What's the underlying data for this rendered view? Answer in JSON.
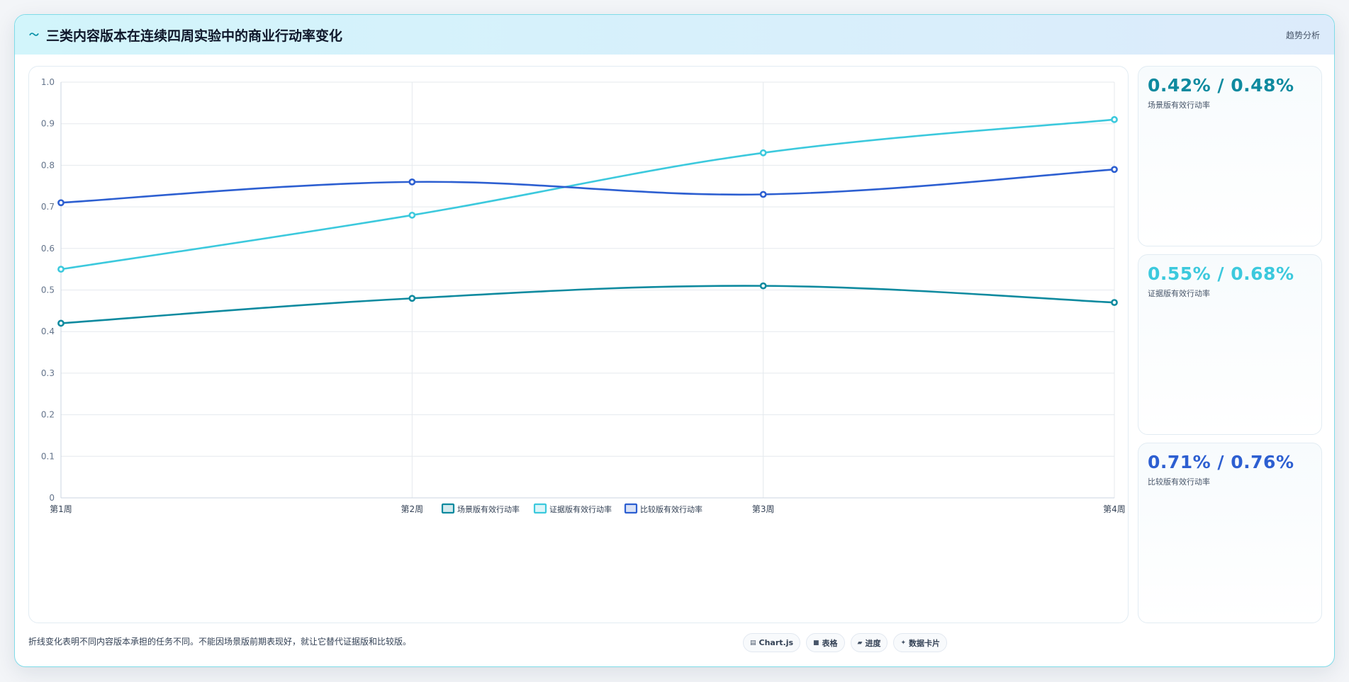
{
  "header": {
    "icon": "wave-icon",
    "title": "三类内容版本在连续四周实验中的商业行动率变化",
    "tag": "趋势分析"
  },
  "chart_data": {
    "type": "line",
    "categories": [
      "第1周",
      "第2周",
      "第3周",
      "第4周"
    ],
    "ylim": [
      0,
      1.0
    ],
    "yticks": [
      "0",
      "0.1",
      "0.2",
      "0.3",
      "0.4",
      "0.5",
      "0.6",
      "0.7",
      "0.8",
      "0.9",
      "1.0"
    ],
    "grid": true,
    "legend_position": "bottom",
    "series": [
      {
        "name": "场景版有效行动率",
        "color": "#0e8a9f",
        "values": [
          0.42,
          0.48,
          0.51,
          0.47
        ]
      },
      {
        "name": "证据版有效行动率",
        "color": "#3cc9dd",
        "values": [
          0.55,
          0.68,
          0.83,
          0.91
        ]
      },
      {
        "name": "比较版有效行动率",
        "color": "#2d5fd1",
        "values": [
          0.71,
          0.76,
          0.73,
          0.79
        ]
      }
    ]
  },
  "stats": [
    {
      "value": "0.42% / 0.48%",
      "label": "场景版有效行动率",
      "color": "#0e8a9f"
    },
    {
      "value": "0.55% / 0.68%",
      "label": "证据版有效行动率",
      "color": "#3cc9dd"
    },
    {
      "value": "0.71% / 0.76%",
      "label": "比较版有效行动率",
      "color": "#2d5fd1"
    }
  ],
  "footer": {
    "note": "折线变化表明不同内容版本承担的任务不同。不能因场景版前期表现好，就让它替代证据版和比较版。",
    "pills": [
      {
        "icon": "chart-icon",
        "glyph": "▤",
        "label": "Chart.js"
      },
      {
        "icon": "table-icon",
        "glyph": "■",
        "label": "表格"
      },
      {
        "icon": "progress-icon",
        "glyph": "▰",
        "label": "进度"
      },
      {
        "icon": "sparkle-icon",
        "glyph": "✦",
        "label": "数据卡片"
      }
    ]
  }
}
